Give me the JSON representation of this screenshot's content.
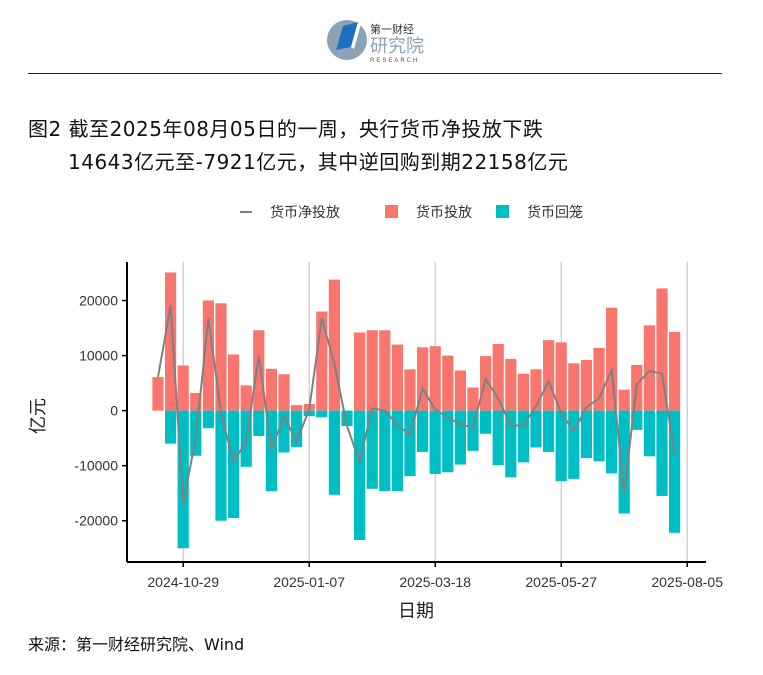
{
  "header": {
    "brand_cn_small": "第一财经",
    "brand_cn_large": "研究院",
    "brand_en": "RESEARCH"
  },
  "title": {
    "line1": "图2 截至2025年08月05日的一周，央行货币净投放下跌",
    "line2": "14643亿元至-7921亿元，其中逆回购到期22158亿元"
  },
  "source": "来源：第一财经研究院、Wind",
  "colors": {
    "injection": "#F8766D",
    "withdrawal": "#00BFC4",
    "net": "#808080"
  },
  "chart_data": {
    "type": "bar",
    "xlabel": "日期",
    "ylabel": "亿元",
    "ylim": [
      -27500,
      27000
    ],
    "yticks": [
      -20000,
      -10000,
      0,
      10000,
      20000
    ],
    "x_tick_labels": [
      "2024-10-29",
      "2025-01-07",
      "2025-03-18",
      "2025-05-27",
      "2025-08-05"
    ],
    "x_tick_index": [
      2,
      12,
      22,
      32,
      42
    ],
    "grid": "vertical lines at x ticks",
    "legend_position": "top",
    "series": [
      {
        "name": "货币投放",
        "values": [
          6100,
          25100,
          8200,
          3200,
          20000,
          19500,
          10200,
          4600,
          14600,
          7600,
          6600,
          1000,
          1200,
          18000,
          23800,
          0,
          14200,
          14600,
          14600,
          12000,
          7500,
          11500,
          11700,
          10000,
          7300,
          4200,
          9900,
          12100,
          9400,
          6700,
          7500,
          12800,
          12400,
          8600,
          9200,
          11400,
          18700,
          3800,
          8300,
          15500,
          22200,
          14300
        ]
      },
      {
        "name": "货币回笼",
        "values": [
          0,
          -6000,
          -25000,
          -8200,
          -3200,
          -20000,
          -19500,
          -10200,
          -4600,
          -14600,
          -7600,
          -6600,
          -1000,
          -1200,
          -15300,
          -2800,
          -23500,
          -14200,
          -14600,
          -14600,
          -11900,
          -7500,
          -11500,
          -11200,
          -9800,
          -7300,
          -4200,
          -9900,
          -12100,
          -9400,
          -6700,
          -7500,
          -12800,
          -12400,
          -8600,
          -9200,
          -11400,
          -18700,
          -3500,
          -8300,
          -15500,
          -22200
        ]
      },
      {
        "name": "货币净投放",
        "values": [
          6100,
          19100,
          -16800,
          -5000,
          16800,
          -500,
          -9300,
          -5600,
          10000,
          -7000,
          -1000,
          -5600,
          200,
          16800,
          8500,
          -2800,
          -9300,
          400,
          0,
          -2600,
          -4400,
          4000,
          200,
          -1200,
          -2500,
          -3100,
          5700,
          2200,
          -2700,
          -2700,
          800,
          5300,
          -400,
          -3800,
          600,
          2200,
          7300,
          -14900,
          4800,
          7200,
          6700,
          -7900
        ]
      }
    ]
  }
}
